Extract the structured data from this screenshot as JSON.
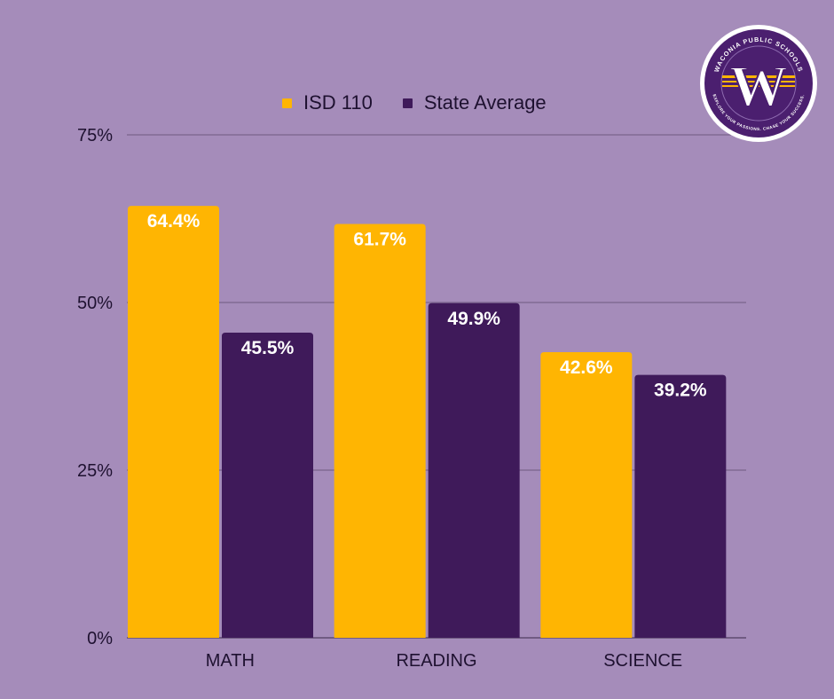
{
  "colors": {
    "background": "#a58cba",
    "isd": "#ffb502",
    "state": "#3f1a5a",
    "grid": "#6e5a80",
    "text": "#1e1130",
    "label": "#ffffff"
  },
  "legend": {
    "items": [
      {
        "label": "ISD 110",
        "color": "#ffb502"
      },
      {
        "label": "State Average",
        "color": "#3f1a5a"
      }
    ]
  },
  "logo": {
    "ring_text": "WACONIA PUBLIC SCHOOLS",
    "tagline": "EXPLORE YOUR PASSIONS. CHASE YOUR SUCCESS.",
    "letter": "W"
  },
  "chart_data": {
    "type": "bar",
    "categories": [
      "MATH",
      "READING",
      "SCIENCE"
    ],
    "series": [
      {
        "name": "ISD 110",
        "values": [
          64.4,
          61.7,
          42.6
        ],
        "labels": [
          "64.4%",
          "61.7%",
          "42.6%"
        ]
      },
      {
        "name": "State Average",
        "values": [
          45.5,
          49.9,
          39.2
        ],
        "labels": [
          "45.5%",
          "49.9%",
          "39.2%"
        ]
      }
    ],
    "ylim": [
      0,
      75
    ],
    "yticks": [
      0,
      25,
      50,
      75
    ],
    "ytick_labels": [
      "0%",
      "25%",
      "50%",
      "75%"
    ],
    "grid": true,
    "legend_position": "top"
  }
}
